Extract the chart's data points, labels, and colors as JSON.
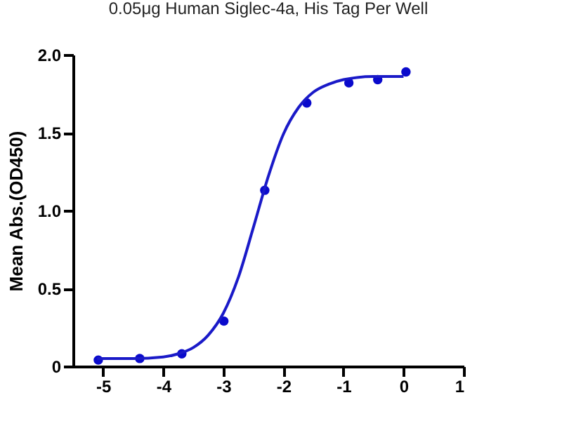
{
  "chart_data": {
    "type": "scatter",
    "title": "0.05μg Human Siglec-4a, His Tag Per Well",
    "ylabel": "Mean Abs.(OD450)",
    "xlim": [
      -5.5,
      1
    ],
    "xticks": [
      -5,
      -4,
      -3,
      -2,
      -1,
      0,
      1
    ],
    "ylim": [
      0,
      2
    ],
    "yticks": [
      0,
      0.5,
      {
        "value": 1,
        "label": "1.0"
      },
      {
        "value": 1.5,
        "label": "1.5"
      },
      {
        "value": 2,
        "label": "2.0"
      }
    ],
    "grid": false,
    "line_style": "solid",
    "series": [
      {
        "color": "#0a0acc",
        "marker": "circle",
        "x": [
          -5.08,
          -4.39,
          -3.69,
          -2.99,
          -2.31,
          -1.61,
          -0.91,
          -0.43,
          0.04
        ],
        "values": [
          0.04,
          0.05,
          0.08,
          0.29,
          1.13,
          1.69,
          1.82,
          1.84,
          1.89
        ]
      },
      {
        "type": "line",
        "color": "#1a1ac8",
        "x": [
          -5.1,
          -4.5,
          -4.0,
          -3.75,
          -3.5,
          -3.25,
          -3.0,
          -2.75,
          -2.5,
          -2.25,
          -2.0,
          -1.75,
          -1.5,
          -1.25,
          -1.0,
          -0.5,
          0.0
        ],
        "values": [
          0.05,
          0.05,
          0.06,
          0.08,
          0.12,
          0.2,
          0.34,
          0.57,
          0.89,
          1.22,
          1.49,
          1.66,
          1.76,
          1.81,
          1.84,
          1.86,
          1.86
        ]
      }
    ]
  }
}
